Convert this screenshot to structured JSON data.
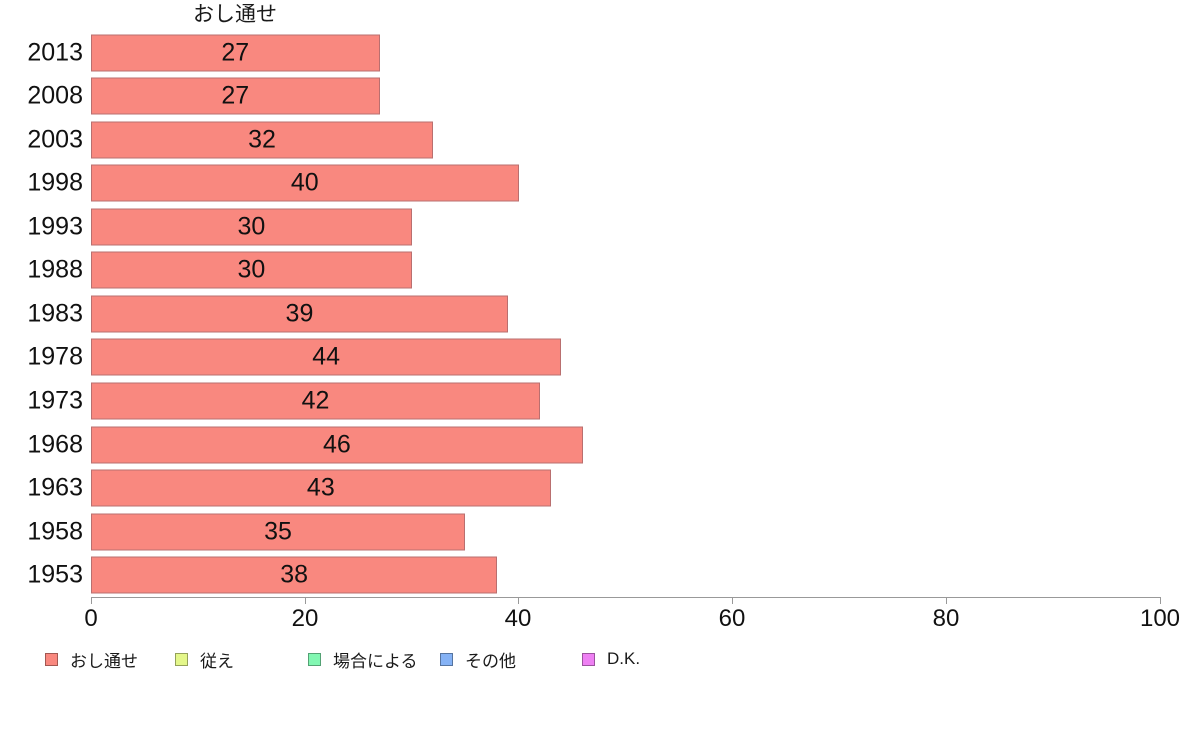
{
  "chart_data": {
    "type": "bar",
    "orientation": "horizontal",
    "title": "おし通せ",
    "categories": [
      "2013",
      "2008",
      "2003",
      "1998",
      "1993",
      "1988",
      "1983",
      "1978",
      "1973",
      "1968",
      "1963",
      "1958",
      "1953"
    ],
    "values": [
      27,
      27,
      32,
      40,
      30,
      30,
      39,
      44,
      42,
      46,
      43,
      35,
      38
    ],
    "xlabel": "",
    "ylabel": "",
    "xlim": [
      0,
      100
    ],
    "x_ticks": [
      "0",
      "20",
      "40",
      "60",
      "80",
      "100"
    ],
    "grid": false,
    "bar_color": "#F9887F",
    "bar_border_color": "#B96F6F",
    "axis_color": "#999999",
    "text_color": "#1a1a1a",
    "legend_position": "bottom",
    "legend": [
      {
        "label": "おし通せ",
        "color": "#F9887F"
      },
      {
        "label": "従え",
        "color": "#E4F78A"
      },
      {
        "label": "場合による",
        "color": "#82F7B2"
      },
      {
        "label": "その他",
        "color": "#85B2F5"
      },
      {
        "label": "D.K.",
        "color": "#EE80F3"
      }
    ]
  }
}
